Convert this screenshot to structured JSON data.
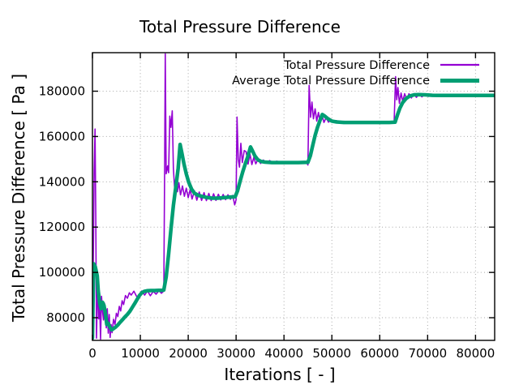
{
  "chart_data": {
    "type": "line",
    "title": "Total Pressure Difference",
    "xlabel": "Iterations [ - ]",
    "ylabel": "Total Pressure Difference [ Pa ]",
    "xlim": [
      0,
      84000
    ],
    "ylim": [
      70000,
      197000
    ],
    "xticks": [
      0,
      10000,
      20000,
      30000,
      40000,
      50000,
      60000,
      70000,
      80000
    ],
    "yticks": [
      80000,
      100000,
      120000,
      140000,
      160000,
      180000
    ],
    "grid": true,
    "grid_style": "dotted",
    "grid_color": "#a8a8a8",
    "border_color": "#000000",
    "background_color": "#ffffff",
    "legend_position": "top-right-inside",
    "series": [
      {
        "name": "Total Pressure Difference",
        "color": "#9400d3",
        "width": 1.6,
        "legend_sample_width": 2.2,
        "points": [
          [
            0,
            72000
          ],
          [
            150,
            100000
          ],
          [
            350,
            145000
          ],
          [
            550,
            163300
          ],
          [
            700,
            125000
          ],
          [
            850,
            71000
          ],
          [
            1000,
            88000
          ],
          [
            1150,
            93500
          ],
          [
            1300,
            79500
          ],
          [
            1500,
            85500
          ],
          [
            1700,
            70500
          ],
          [
            1900,
            89500
          ],
          [
            2100,
            83000
          ],
          [
            2300,
            79000
          ],
          [
            2500,
            86500
          ],
          [
            2700,
            81000
          ],
          [
            2900,
            75500
          ],
          [
            3100,
            84000
          ],
          [
            3300,
            73200
          ],
          [
            3500,
            81400
          ],
          [
            3700,
            71300
          ],
          [
            3900,
            77000
          ],
          [
            4100,
            73400
          ],
          [
            4400,
            79300
          ],
          [
            4700,
            77000
          ],
          [
            5000,
            82000
          ],
          [
            5300,
            80500
          ],
          [
            5600,
            85000
          ],
          [
            5900,
            83000
          ],
          [
            6200,
            87500
          ],
          [
            6500,
            85800
          ],
          [
            6900,
            89800
          ],
          [
            7300,
            88600
          ],
          [
            7700,
            91000
          ],
          [
            8100,
            90000
          ],
          [
            8650,
            91700
          ],
          [
            9200,
            89500
          ],
          [
            9700,
            88600
          ],
          [
            10300,
            91800
          ],
          [
            10900,
            90000
          ],
          [
            11500,
            91800
          ],
          [
            12100,
            89700
          ],
          [
            12700,
            91600
          ],
          [
            13300,
            90400
          ],
          [
            13900,
            92000
          ],
          [
            14400,
            90800
          ],
          [
            14900,
            91800
          ],
          [
            15050,
            140000
          ],
          [
            15200,
            196500
          ],
          [
            15400,
            143500
          ],
          [
            15700,
            147000
          ],
          [
            15900,
            144000
          ],
          [
            16150,
            169000
          ],
          [
            16400,
            164000
          ],
          [
            16660,
            171300
          ],
          [
            16900,
            146000
          ],
          [
            17150,
            137200
          ],
          [
            17450,
            141200
          ],
          [
            17750,
            135600
          ],
          [
            18050,
            139600
          ],
          [
            18400,
            134200
          ],
          [
            18800,
            138200
          ],
          [
            19200,
            133600
          ],
          [
            19600,
            137200
          ],
          [
            20000,
            133000
          ],
          [
            20400,
            136600
          ],
          [
            20800,
            132400
          ],
          [
            21300,
            136000
          ],
          [
            21800,
            131900
          ],
          [
            22300,
            135500
          ],
          [
            22800,
            131800
          ],
          [
            23300,
            135200
          ],
          [
            23800,
            131700
          ],
          [
            24300,
            134900
          ],
          [
            24800,
            131700
          ],
          [
            25300,
            134700
          ],
          [
            25800,
            131800
          ],
          [
            26300,
            134500
          ],
          [
            26800,
            132000
          ],
          [
            27300,
            134400
          ],
          [
            27800,
            132100
          ],
          [
            28300,
            134300
          ],
          [
            28800,
            132300
          ],
          [
            29300,
            134000
          ],
          [
            29700,
            129800
          ],
          [
            30000,
            132000
          ],
          [
            30200,
            168600
          ],
          [
            30450,
            150000
          ],
          [
            30700,
            146500
          ],
          [
            31000,
            157000
          ],
          [
            31300,
            148500
          ],
          [
            31700,
            153800
          ],
          [
            32100,
            153300
          ],
          [
            32500,
            147800
          ],
          [
            32900,
            152200
          ],
          [
            33300,
            147600
          ],
          [
            33700,
            150800
          ],
          [
            34100,
            147900
          ],
          [
            34600,
            150100
          ],
          [
            35100,
            148100
          ],
          [
            35700,
            149600
          ],
          [
            36300,
            148300
          ],
          [
            37000,
            149400
          ],
          [
            37700,
            148400
          ],
          [
            38500,
            149100
          ],
          [
            39300,
            148500
          ],
          [
            40200,
            148900
          ],
          [
            41200,
            148600
          ],
          [
            42400,
            148800
          ],
          [
            43600,
            148600
          ],
          [
            44700,
            148700
          ],
          [
            45000,
            147400
          ],
          [
            45250,
            182600
          ],
          [
            45550,
            168500
          ],
          [
            45850,
            175200
          ],
          [
            46150,
            167800
          ],
          [
            46500,
            172200
          ],
          [
            46850,
            166800
          ],
          [
            47200,
            170600
          ],
          [
            47550,
            166400
          ],
          [
            47950,
            169300
          ],
          [
            48350,
            166200
          ],
          [
            48800,
            168300
          ],
          [
            49300,
            166300
          ],
          [
            49800,
            167600
          ],
          [
            50400,
            166300
          ],
          [
            51000,
            167000
          ],
          [
            51700,
            166300
          ],
          [
            52500,
            166700
          ],
          [
            53500,
            166300
          ],
          [
            54800,
            166500
          ],
          [
            56200,
            166300
          ],
          [
            58000,
            166400
          ],
          [
            60000,
            166300
          ],
          [
            61500,
            166300
          ],
          [
            63000,
            166200
          ],
          [
            63300,
            186400
          ],
          [
            63550,
            176200
          ],
          [
            63800,
            181600
          ],
          [
            64100,
            174600
          ],
          [
            64450,
            179200
          ],
          [
            64800,
            175400
          ],
          [
            65200,
            178900
          ],
          [
            65650,
            176300
          ],
          [
            66100,
            178900
          ],
          [
            66600,
            177000
          ],
          [
            67100,
            178900
          ],
          [
            67650,
            177300
          ],
          [
            68200,
            178800
          ],
          [
            68800,
            177500
          ],
          [
            69500,
            178700
          ],
          [
            70200,
            177700
          ],
          [
            71000,
            178500
          ],
          [
            71800,
            177800
          ],
          [
            72700,
            178400
          ],
          [
            73600,
            177900
          ],
          [
            74500,
            178400
          ],
          [
            75500,
            177900
          ],
          [
            76500,
            178300
          ],
          [
            77500,
            177900
          ],
          [
            78500,
            178300
          ],
          [
            79500,
            177900
          ],
          [
            80500,
            178200
          ],
          [
            81500,
            177900
          ],
          [
            82500,
            178200
          ],
          [
            83300,
            177900
          ],
          [
            84000,
            178100
          ]
        ]
      },
      {
        "name": "Average Total Pressure Difference",
        "color": "#009e73",
        "width": 4.5,
        "legend_sample_width": 5,
        "points": [
          [
            0,
            71000
          ],
          [
            250,
            103800
          ],
          [
            600,
            102500
          ],
          [
            1000,
            98500
          ],
          [
            1200,
            92000
          ],
          [
            1500,
            86500
          ],
          [
            1800,
            84000
          ],
          [
            2100,
            86800
          ],
          [
            2400,
            85500
          ],
          [
            2700,
            82000
          ],
          [
            3000,
            77000
          ],
          [
            3300,
            77500
          ],
          [
            3600,
            76000
          ],
          [
            4000,
            74600
          ],
          [
            4400,
            75200
          ],
          [
            4800,
            75800
          ],
          [
            5300,
            76800
          ],
          [
            5800,
            78000
          ],
          [
            6300,
            79200
          ],
          [
            6800,
            80400
          ],
          [
            7300,
            81500
          ],
          [
            7800,
            82800
          ],
          [
            8300,
            84500
          ],
          [
            8800,
            86200
          ],
          [
            9300,
            88000
          ],
          [
            9800,
            89800
          ],
          [
            10300,
            91000
          ],
          [
            10800,
            91600
          ],
          [
            11400,
            91900
          ],
          [
            12200,
            92000
          ],
          [
            13000,
            92000
          ],
          [
            13800,
            92100
          ],
          [
            14600,
            92100
          ],
          [
            14900,
            92200
          ],
          [
            15400,
            98000
          ],
          [
            15900,
            108000
          ],
          [
            16400,
            119000
          ],
          [
            16900,
            129500
          ],
          [
            17200,
            134500
          ],
          [
            17500,
            139000
          ],
          [
            17900,
            146000
          ],
          [
            18300,
            156500
          ],
          [
            18700,
            152500
          ],
          [
            19100,
            148000
          ],
          [
            19600,
            143500
          ],
          [
            20100,
            139800
          ],
          [
            20700,
            136800
          ],
          [
            21300,
            135000
          ],
          [
            22000,
            134100
          ],
          [
            22800,
            133600
          ],
          [
            23800,
            133100
          ],
          [
            25000,
            132800
          ],
          [
            26200,
            132800
          ],
          [
            27400,
            133000
          ],
          [
            28600,
            133200
          ],
          [
            29800,
            133400
          ],
          [
            30300,
            136000
          ],
          [
            30800,
            140000
          ],
          [
            31400,
            144500
          ],
          [
            32000,
            148500
          ],
          [
            32500,
            151500
          ],
          [
            33000,
            155400
          ],
          [
            33400,
            153800
          ],
          [
            33900,
            151500
          ],
          [
            34500,
            149800
          ],
          [
            35200,
            149000
          ],
          [
            36000,
            148700
          ],
          [
            37500,
            148500
          ],
          [
            39000,
            148500
          ],
          [
            41000,
            148500
          ],
          [
            43000,
            148500
          ],
          [
            45000,
            148600
          ],
          [
            45500,
            151500
          ],
          [
            46000,
            156000
          ],
          [
            46500,
            160500
          ],
          [
            47000,
            164000
          ],
          [
            47500,
            167000
          ],
          [
            48000,
            169700
          ],
          [
            48500,
            169000
          ],
          [
            49200,
            167800
          ],
          [
            50000,
            166800
          ],
          [
            51000,
            166400
          ],
          [
            52500,
            166200
          ],
          [
            54000,
            166200
          ],
          [
            56000,
            166200
          ],
          [
            58000,
            166200
          ],
          [
            60000,
            166200
          ],
          [
            62000,
            166200
          ],
          [
            63200,
            166300
          ],
          [
            63700,
            169500
          ],
          [
            64200,
            172500
          ],
          [
            64800,
            175000
          ],
          [
            65500,
            176800
          ],
          [
            66300,
            177900
          ],
          [
            67200,
            178400
          ],
          [
            68200,
            178500
          ],
          [
            69500,
            178400
          ],
          [
            71000,
            178200
          ],
          [
            73000,
            178100
          ],
          [
            75000,
            178100
          ],
          [
            77000,
            178100
          ],
          [
            79000,
            178100
          ],
          [
            81000,
            178100
          ],
          [
            83000,
            178100
          ],
          [
            84000,
            178100
          ]
        ]
      }
    ]
  }
}
